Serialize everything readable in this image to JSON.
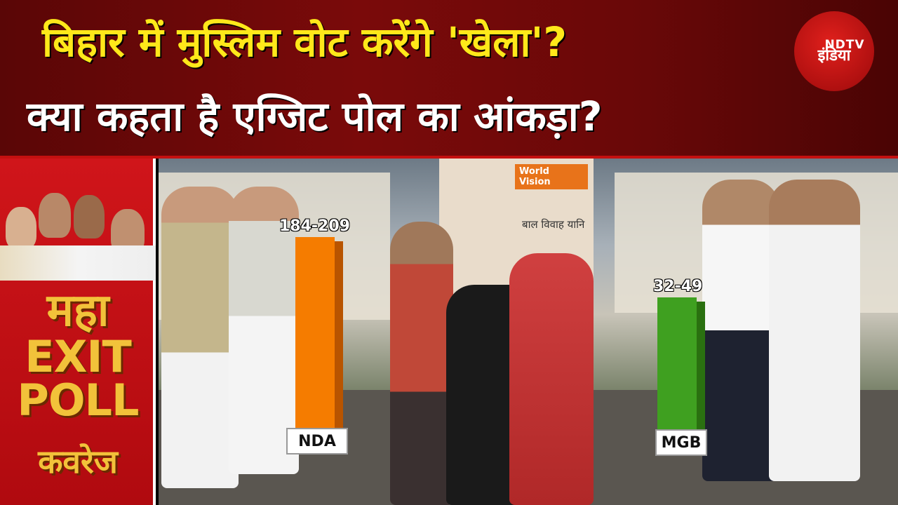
{
  "headline": {
    "line1": "बिहार में मुस्लिम वोट करेंगे 'खेला'?",
    "line2": "क्या कहता है एग्जिट पोल का आंकड़ा?"
  },
  "logo": {
    "top": "NDTV",
    "bottom": "इंडिया",
    "color": "#c41414"
  },
  "side_panel": {
    "maha": "महा",
    "exit": "EXIT",
    "poll": "POLL",
    "coverage": "कवरेज"
  },
  "background_sign": {
    "org": "World Vision",
    "text": "बाल विवाह यानि"
  },
  "chart_data": {
    "type": "bar",
    "categories": [
      "NDA",
      "MGB"
    ],
    "value_labels": [
      "184-209",
      "32-49"
    ],
    "ranges": [
      [
        184,
        209
      ],
      [
        32,
        49
      ]
    ],
    "colors": [
      "#f57c00",
      "#3fa020"
    ]
  }
}
